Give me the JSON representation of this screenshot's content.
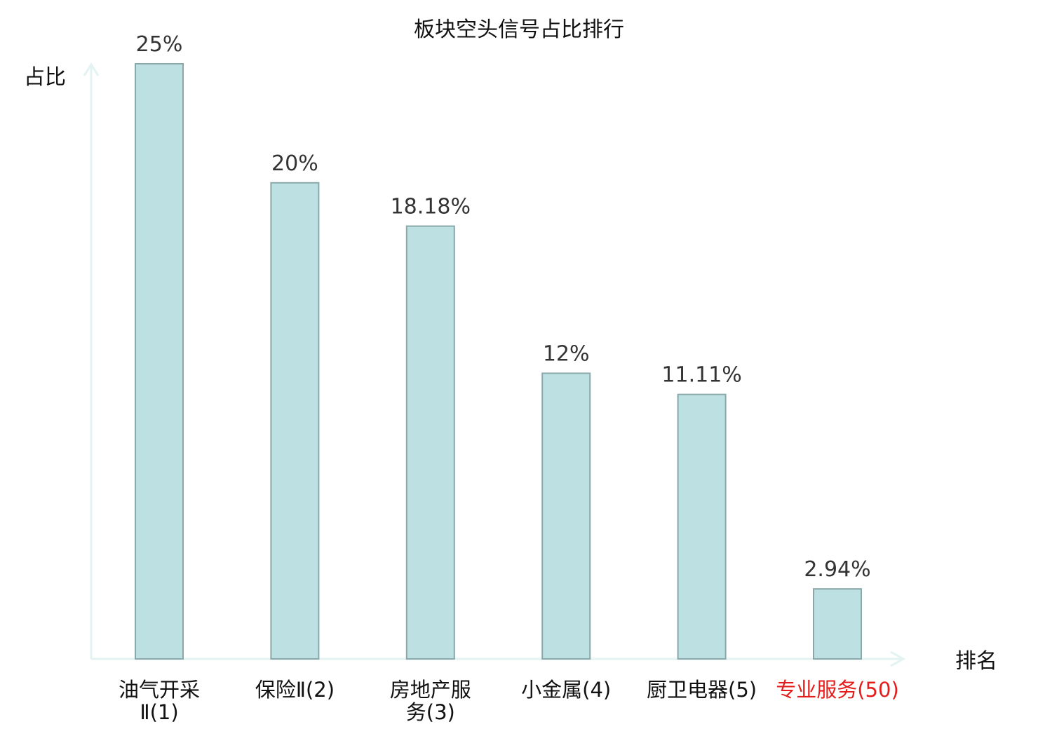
{
  "chart_data": {
    "type": "bar",
    "title": "板块空头信号占比排行",
    "ylabel": "占比",
    "xlabel": "排名",
    "ylim": [
      0,
      25
    ],
    "grid": false,
    "legend": "none",
    "bar_color": "#bde0e2",
    "bar_stroke": "#8aa8aa",
    "axis_color": "#e2f3f1",
    "highlight_color": "#e51c1c",
    "categories": [
      {
        "name": "油气开采Ⅱ",
        "rank": "(1)",
        "highlight": false
      },
      {
        "name": "保险Ⅱ",
        "rank": "(2)",
        "highlight": false
      },
      {
        "name": "房地产服务",
        "rank": "(3)",
        "highlight": false
      },
      {
        "name": "小金属",
        "rank": "(4)",
        "highlight": false
      },
      {
        "name": "厨卫电器",
        "rank": "(5)",
        "highlight": false
      },
      {
        "name": "专业服务",
        "rank": "(50)",
        "highlight": true
      }
    ],
    "values": [
      25,
      20,
      18.18,
      12,
      11.11,
      2.94
    ],
    "value_labels": [
      "25%",
      "20%",
      "18.18%",
      "12%",
      "11.11%",
      "2.94%"
    ]
  }
}
